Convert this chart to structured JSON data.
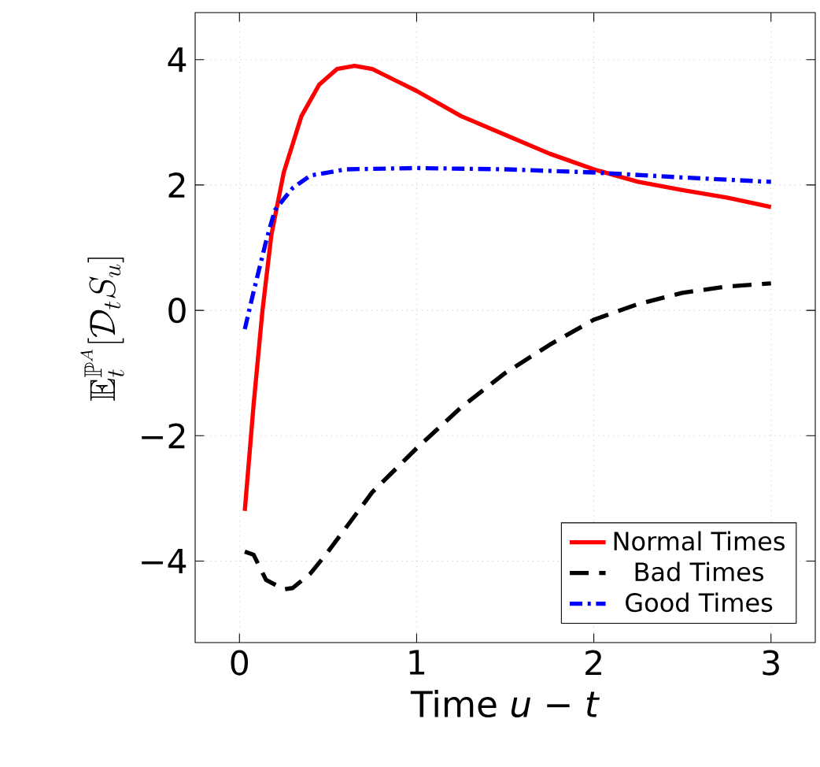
{
  "chart_data": {
    "type": "line",
    "xlabel": "Time *u* − *t*",
    "ylabel": "\\mathbb{E}_t^{\\mathbb{P}^A}[\\mathcal{D}_t S_u]",
    "xlim": [
      -0.25,
      3.25
    ],
    "ylim": [
      -5.3,
      4.75
    ],
    "xticks": [
      0,
      1,
      2,
      3
    ],
    "yticks": [
      {
        "value": -4,
        "label": "−4"
      },
      {
        "value": -2,
        "label": "−2"
      },
      0,
      2,
      4
    ],
    "grid": true,
    "legend": "bottom right",
    "marker": "none",
    "series": [
      {
        "name": "Normal Times",
        "color": "#ff0000",
        "line_style": "solid",
        "x": [
          0.03,
          0.08,
          0.13,
          0.18,
          0.25,
          0.35,
          0.45,
          0.55,
          0.65,
          0.75,
          1.0,
          1.25,
          1.5,
          1.75,
          2.0,
          2.25,
          2.5,
          2.75,
          3.0
        ],
        "values": [
          -3.2,
          -1.5,
          0,
          1.2,
          2.2,
          3.1,
          3.6,
          3.85,
          3.9,
          3.85,
          3.5,
          3.1,
          2.8,
          2.5,
          2.25,
          2.05,
          1.92,
          1.8,
          1.65
        ]
      },
      {
        "name": "Bad Times",
        "color": "#000000",
        "line_style": "dashed",
        "x": [
          0.03,
          0.08,
          0.15,
          0.25,
          0.3,
          0.4,
          0.5,
          0.75,
          1.0,
          1.25,
          1.5,
          1.75,
          2.0,
          2.25,
          2.5,
          2.75,
          3.0
        ],
        "values": [
          -3.85,
          -3.9,
          -4.3,
          -4.45,
          -4.43,
          -4.2,
          -3.85,
          -2.9,
          -2.2,
          -1.55,
          -1.0,
          -0.55,
          -0.15,
          0.1,
          0.28,
          0.38,
          0.43
        ]
      },
      {
        "name": "Good Times",
        "color": "#0000ff",
        "line_style": "dashdot",
        "x": [
          0.03,
          0.08,
          0.15,
          0.2,
          0.3,
          0.4,
          0.6,
          1.0,
          1.5,
          2.0,
          2.5,
          3.0
        ],
        "values": [
          -0.3,
          0.3,
          1.1,
          1.6,
          1.95,
          2.15,
          2.25,
          2.27,
          2.25,
          2.2,
          2.12,
          2.05
        ]
      }
    ]
  }
}
